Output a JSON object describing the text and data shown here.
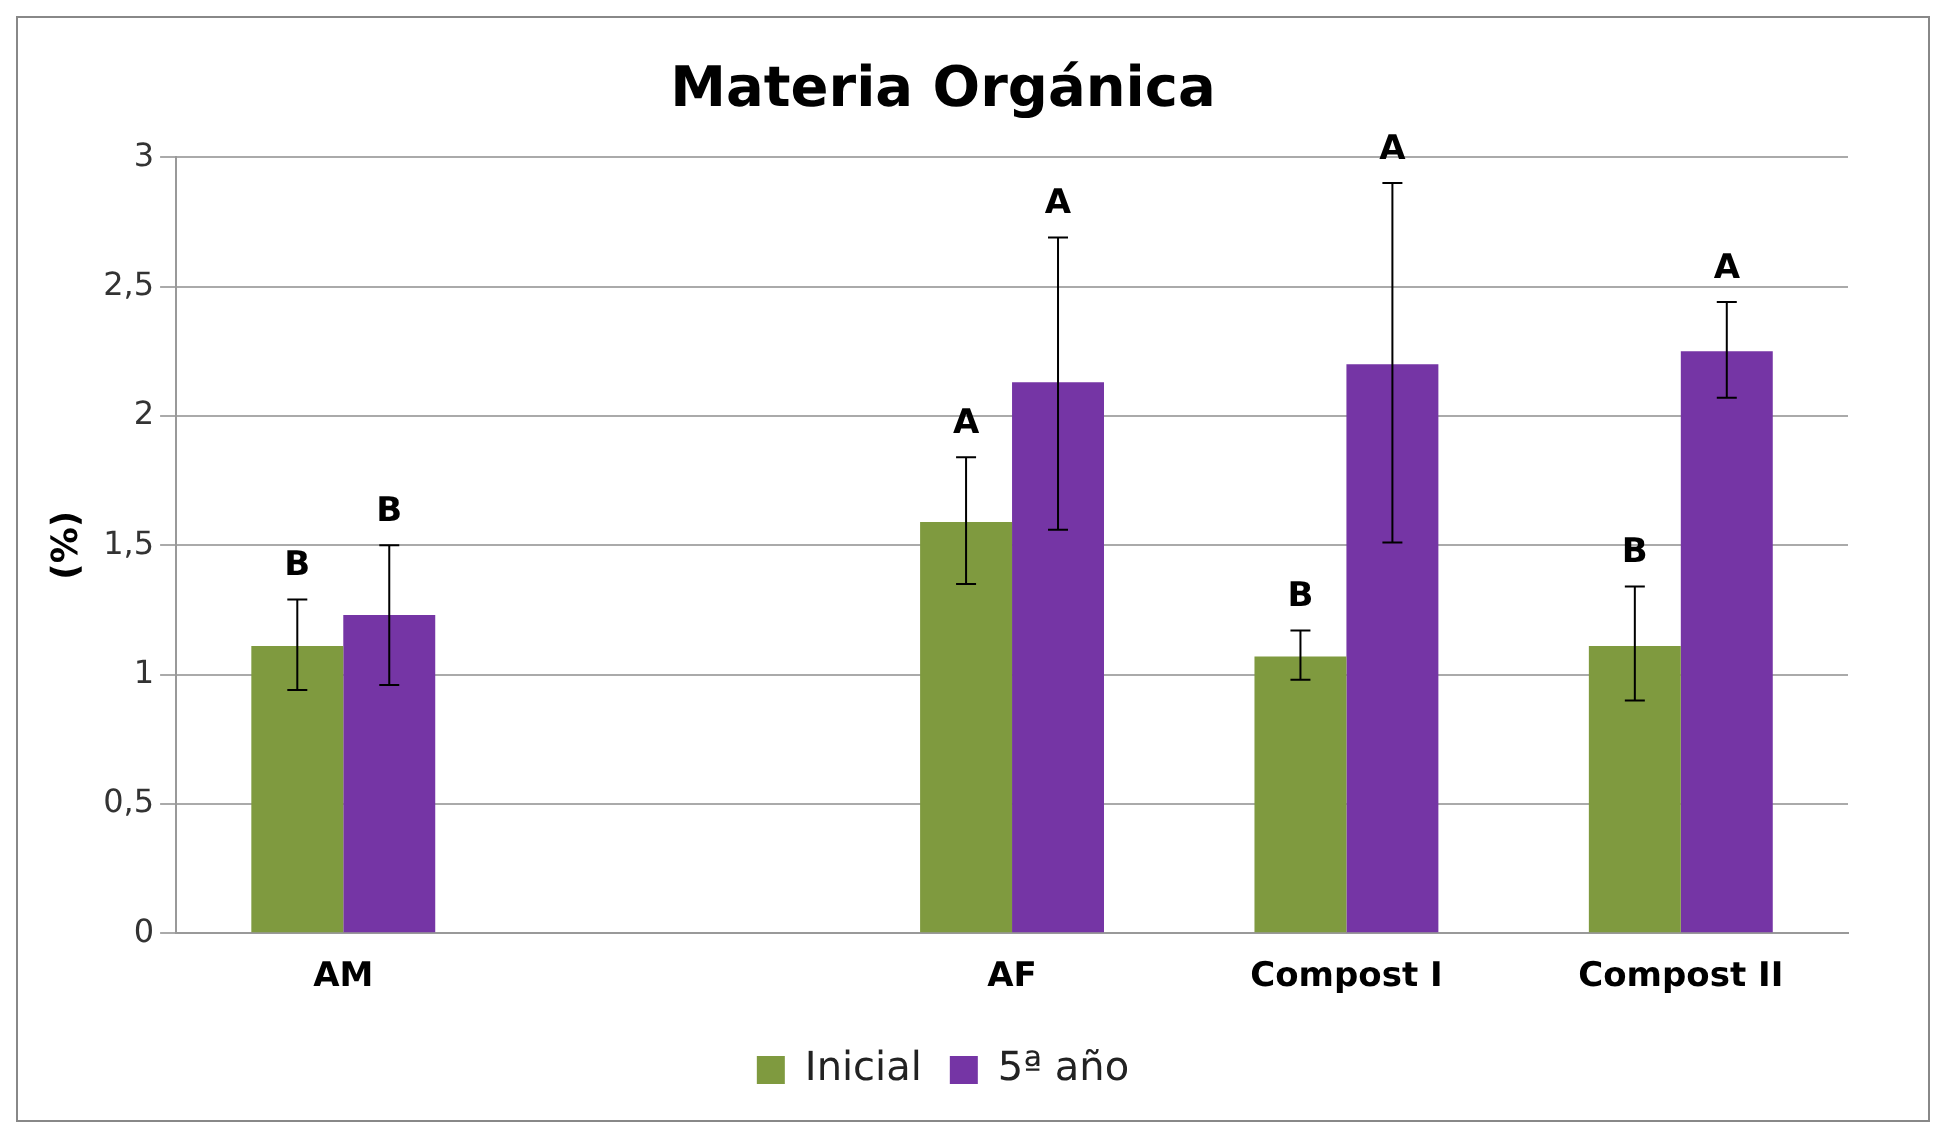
{
  "chart_data": {
    "type": "bar",
    "title": "Materia Orgánica",
    "ylabel": "(%)",
    "categories": [
      "AM",
      null,
      "AF",
      "Compost I",
      "Compost II"
    ],
    "series": [
      {
        "name": "Inicial",
        "color": "#7f9a3f",
        "values": [
          1.11,
          null,
          1.59,
          1.07,
          1.11
        ],
        "errors": [
          [
            0.94,
            1.29
          ],
          null,
          [
            1.35,
            1.84
          ],
          [
            0.98,
            1.17
          ],
          [
            0.9,
            1.34
          ]
        ]
      },
      {
        "name": "5ª año",
        "color": "#7535a5",
        "values": [
          1.23,
          null,
          2.13,
          2.2,
          2.25
        ],
        "errors": [
          [
            0.96,
            1.5
          ],
          null,
          [
            1.56,
            2.69
          ],
          [
            1.51,
            2.9
          ],
          [
            2.07,
            2.44
          ]
        ]
      }
    ],
    "annotations": [
      "B",
      "B",
      "A",
      "A",
      "B",
      "A",
      "B",
      "A"
    ],
    "ylim": [
      0,
      3
    ],
    "yticks": [
      0,
      {
        "value": 0.5,
        "label": "0,5"
      },
      1,
      {
        "value": 1.5,
        "label": "1,5"
      },
      2,
      {
        "value": 2.5,
        "label": "2,5"
      },
      3
    ],
    "grid": "y",
    "legend": "bottom"
  }
}
